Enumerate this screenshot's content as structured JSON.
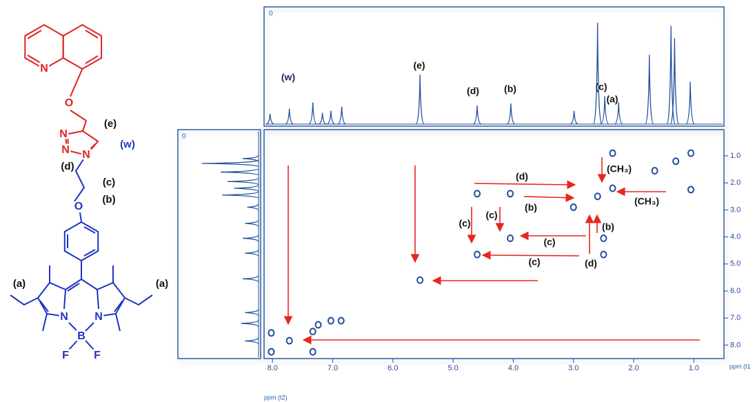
{
  "structure": {
    "atom_labels": [
      "N",
      "O",
      "N",
      "N",
      "N",
      "O",
      "N",
      "N",
      "B",
      "F",
      "F"
    ],
    "position_labels": [
      "(e)",
      "(w)",
      "(d)",
      "(c)",
      "(b)",
      "(a)",
      "(a)"
    ]
  },
  "chart_data": {
    "type": "scatter",
    "x_label": "ppm (t2)",
    "y_label": "ppm (t1",
    "top_projection_label": "0",
    "left_projection_label": "0",
    "xlim": [
      8.14,
      0.5
    ],
    "ylim": [
      0.03,
      8.5
    ],
    "xticks": [
      {
        "value": 8,
        "label": "8.0"
      },
      {
        "value": 7,
        "label": "7.0"
      },
      {
        "value": 6,
        "label": "6.0"
      },
      {
        "value": 5,
        "label": "5.0"
      },
      {
        "value": 4,
        "label": "4.0"
      },
      {
        "value": 3,
        "label": "3.0"
      },
      {
        "value": 2,
        "label": "2.0"
      },
      {
        "value": 1,
        "label": "1.0"
      }
    ],
    "yticks": [
      {
        "value": 1,
        "label": "1.0"
      },
      {
        "value": 2,
        "label": "2.0"
      },
      {
        "value": 3,
        "label": "3.0"
      },
      {
        "value": 4,
        "label": "4.0"
      },
      {
        "value": 5,
        "label": "5.0"
      },
      {
        "value": 6,
        "label": "6.0"
      },
      {
        "value": 7,
        "label": "7.0"
      },
      {
        "value": 8,
        "label": "8.0"
      }
    ],
    "color": "#1f4e9c",
    "arrow_color": "#e8251e",
    "cross_peaks": {
      "x": [
        2.35,
        1.05,
        1.3,
        1.65,
        1.05,
        2.35,
        2.6,
        4.6,
        4.05,
        3.0,
        2.5,
        4.05,
        4.6,
        2.5,
        5.55,
        7.72,
        8.02,
        8.02,
        7.33,
        7.24,
        7.03,
        6.86,
        7.33
      ],
      "y": [
        0.9,
        0.9,
        1.2,
        1.55,
        2.25,
        2.2,
        2.5,
        2.4,
        2.4,
        2.9,
        4.05,
        4.05,
        4.65,
        4.65,
        5.6,
        7.84,
        7.55,
        8.25,
        7.5,
        7.25,
        7.1,
        7.1,
        8.25
      ]
    },
    "top_projection": {
      "x": [
        8.04,
        7.72,
        7.33,
        7.17,
        7.03,
        6.85,
        5.55,
        4.6,
        4.04,
        2.99,
        2.6,
        2.48,
        2.25,
        1.74,
        1.38,
        1.32,
        1.06
      ],
      "intensity": [
        10,
        15,
        21,
        11,
        13,
        17,
        48,
        18,
        20,
        13,
        98,
        27,
        21,
        67,
        95,
        83,
        41
      ]
    },
    "left_projection": {
      "y": [
        1.1,
        1.28,
        1.6,
        1.95,
        2.2,
        2.45,
        2.9,
        3.5,
        4.05,
        4.6,
        5.55,
        6.8,
        7.2,
        7.85
      ],
      "intensity": [
        21,
        75,
        50,
        41,
        32,
        48,
        15,
        18,
        21,
        18,
        21,
        18,
        23,
        18
      ]
    },
    "top_annotations": [
      "(w)",
      "(e)",
      "(d)",
      "(b)",
      "(c)",
      "(a)"
    ],
    "map_annotations": [
      "(d)",
      "(b)",
      "(CH₃)",
      "(CH₃)",
      "(c)",
      "(c)",
      "(b)",
      "(c)",
      "(c)",
      "(d)"
    ]
  }
}
